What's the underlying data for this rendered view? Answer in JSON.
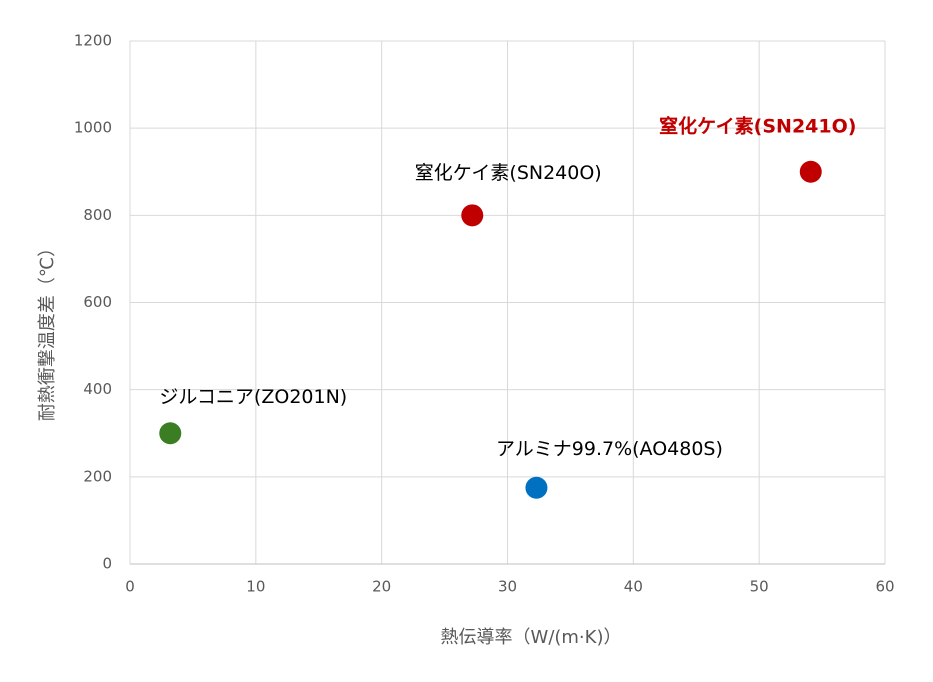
{
  "chart_data": {
    "type": "scatter",
    "x_label": "熱伝導率（W/(m·K)）",
    "y_label": "耐熱衝撃温度差（℃）",
    "xlim": [
      0,
      60
    ],
    "xticks": [
      0,
      10,
      20,
      30,
      40,
      50,
      60
    ],
    "ylim": [
      0,
      1200
    ],
    "yticks": [
      0,
      200,
      400,
      600,
      800,
      1000,
      1200
    ],
    "grid": true,
    "series": [
      {
        "name": "ジルコニア(ZO201N)",
        "color": "#3a7d22",
        "label_color": "#000000",
        "label_bold": false,
        "x": [
          3.2
        ],
        "values": [
          300
        ]
      },
      {
        "name": "窒化ケイ素(SN240O)",
        "color": "#c00000",
        "label_color": "#000000",
        "label_bold": false,
        "x": [
          27.2
        ],
        "values": [
          800
        ]
      },
      {
        "name": "窒化ケイ素(SN241O)",
        "color": "#c00000",
        "label_color": "#c00000",
        "label_bold": true,
        "x": [
          54.1
        ],
        "values": [
          900
        ]
      },
      {
        "name": "アルミナ99.7%(AO480S)",
        "color": "#0070c0",
        "label_color": "#000000",
        "label_bold": false,
        "x": [
          32.3
        ],
        "values": [
          175
        ]
      }
    ]
  }
}
